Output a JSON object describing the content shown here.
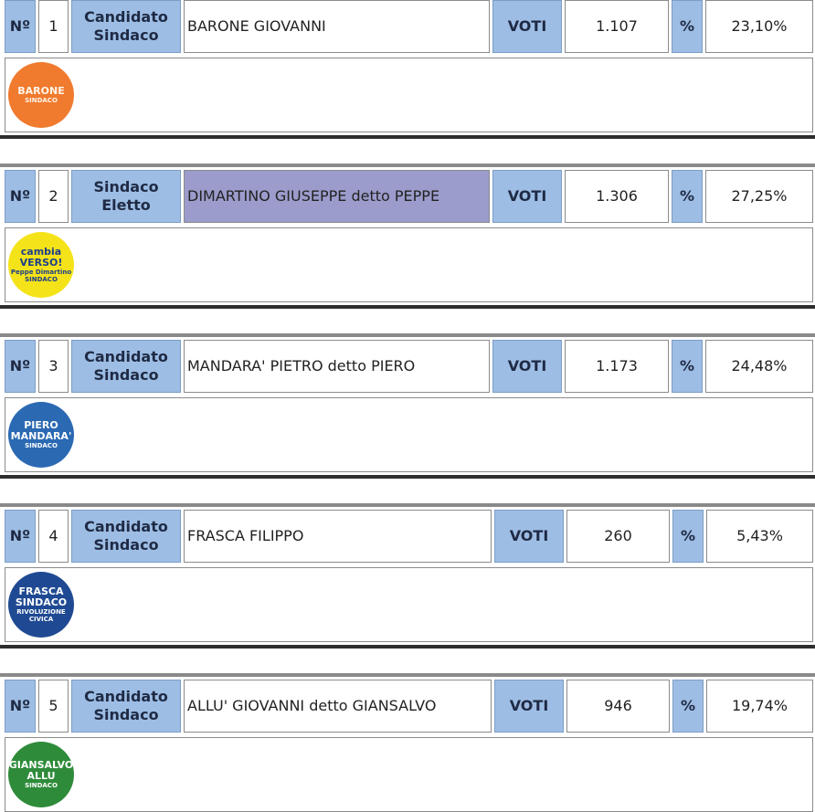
{
  "labels": {
    "no": "Nº",
    "voti": "VOTI",
    "percent": "%"
  },
  "candidates": [
    {
      "num": "1",
      "role": "Candidato Sindaco",
      "name": "BARONE GIOVANNI",
      "votes": "1.107",
      "pct": "23,10%",
      "logo": {
        "name": "barone-logo",
        "line1": "BARONE",
        "line2": "SINDACO",
        "bg": "#f07a2e",
        "color": "#fff5e8"
      }
    },
    {
      "num": "2",
      "role": "Sindaco Eletto",
      "name": "DIMARTINO GIUSEPPE detto PEPPE",
      "votes": "1.306",
      "pct": "27,25%",
      "elected": true,
      "logo": {
        "name": "cambia-verso-logo",
        "line1": "cambia VERSO!",
        "line2": "Peppe Dimartino SINDACO",
        "bg": "#f5e31a",
        "color": "#1d3f8a"
      }
    },
    {
      "num": "3",
      "role": "Candidato Sindaco",
      "name": "MANDARA' PIETRO detto PIERO",
      "votes": "1.173",
      "pct": "24,48%",
      "logo": {
        "name": "mandara-logo",
        "line1": "PIERO MANDARA'",
        "line2": "SINDACO",
        "bg": "#2b69b3",
        "color": "#ffffff"
      }
    },
    {
      "num": "4",
      "role": "Candidato Sindaco",
      "name": "FRASCA FILIPPO",
      "votes": "260",
      "pct": "5,43%",
      "logo": {
        "name": "frasca-logo",
        "line1": "FRASCA SINDACO",
        "line2": "RIVOLUZIONE CIVICA",
        "bg": "#1f4a93",
        "color": "#ffffff"
      }
    },
    {
      "num": "5",
      "role": "Candidato Sindaco",
      "name": "ALLU' GIOVANNI detto GIANSALVO",
      "votes": "946",
      "pct": "19,74%",
      "logo": {
        "name": "allu-logo",
        "line1": "GIANSALVO ALLU",
        "line2": "SINDACO",
        "bg": "#2e8b3a",
        "color": "#ffffff"
      }
    }
  ]
}
